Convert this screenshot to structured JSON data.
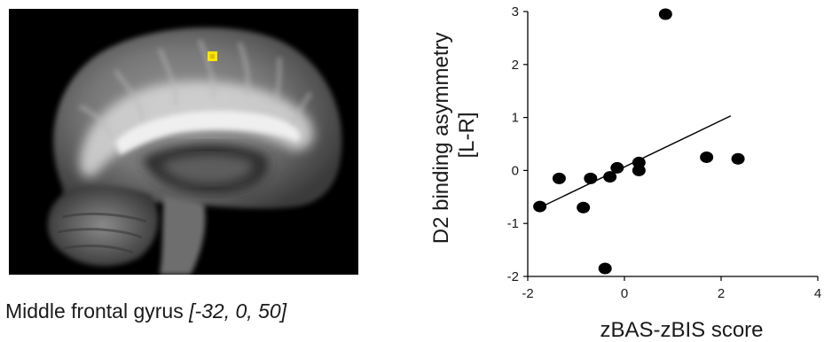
{
  "brain_image": {
    "caption": "Middle frontal gyrus",
    "coordinates": "[-32, 0, 50]",
    "highlight_color": "#ffe600",
    "background_color": "#000000"
  },
  "chart_data": {
    "type": "scatter",
    "title": "",
    "xlabel": "zBAS-zBIS score",
    "ylabel": "D2 binding asymmetry [L-R]",
    "ylabel_lines": [
      "D2 binding asymmetry",
      "[L-R]"
    ],
    "xlim": [
      -2,
      4
    ],
    "ylim": [
      -2,
      3
    ],
    "xticks": [
      -2,
      0,
      2,
      4
    ],
    "yticks": [
      -2,
      -1,
      0,
      1,
      2,
      3
    ],
    "grid": false,
    "points": [
      {
        "x": -1.75,
        "y": -0.68
      },
      {
        "x": -1.35,
        "y": -0.15
      },
      {
        "x": -0.85,
        "y": -0.7
      },
      {
        "x": -0.7,
        "y": -0.15
      },
      {
        "x": -0.4,
        "y": -1.85
      },
      {
        "x": -0.3,
        "y": -0.12
      },
      {
        "x": -0.15,
        "y": 0.05
      },
      {
        "x": 0.3,
        "y": 0.15
      },
      {
        "x": 0.3,
        "y": 0.0
      },
      {
        "x": 0.85,
        "y": 2.95
      },
      {
        "x": 1.7,
        "y": 0.25
      },
      {
        "x": 2.35,
        "y": 0.22
      }
    ],
    "trendline": {
      "x": [
        -1.75,
        2.2
      ],
      "y": [
        -0.7,
        1.03
      ]
    },
    "marker_color": "#000000",
    "line_color": "#000000"
  }
}
